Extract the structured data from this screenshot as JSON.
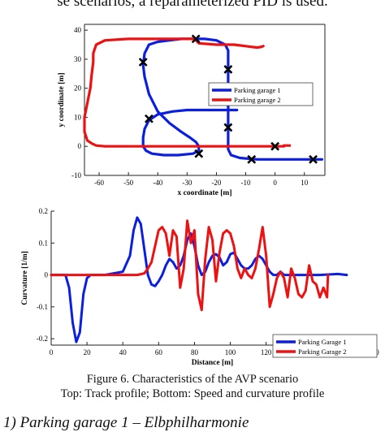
{
  "page": {
    "top_text": "se scenarios, a reparameterized PID is used.",
    "caption_line1": "Figure 6.    Characteristics of the AVP scenario",
    "caption_line2": "Top: Track profile; Bottom: Speed and curvature profile",
    "bottom_text": "1)   Parking garage 1 – Elbphilharmonie"
  },
  "colors": {
    "blue": "#0b1fe0",
    "red": "#ee1111"
  },
  "chart_data": [
    {
      "type": "line",
      "xlabel": "x coordinate [m]",
      "ylabel": "y coordinate [m]",
      "xlim": [
        -65,
        17
      ],
      "ylim": [
        -10,
        42
      ],
      "xticks": [
        -60,
        -50,
        -40,
        -30,
        -20,
        -10,
        0,
        10
      ],
      "yticks": [
        -10,
        0,
        10,
        20,
        30,
        40
      ],
      "legend": "right",
      "series": [
        {
          "name": "Parking garage 1",
          "color": "#0b1fe0",
          "x": [
            16,
            10,
            2,
            -6,
            -12,
            -15,
            -16,
            -16,
            -16,
            -16,
            -16,
            -16,
            -16,
            -16,
            -16,
            -16,
            -16,
            -17,
            -20,
            -24,
            -28,
            -32,
            -36,
            -40,
            -43,
            -44.5,
            -45,
            -44.5,
            -43,
            -40,
            -36,
            -32,
            -29,
            -27,
            -26,
            -26,
            -28,
            -33,
            -38,
            -42,
            -44,
            -45,
            -45,
            -44.5,
            -43,
            -40,
            -35,
            -30,
            -26,
            -24,
            -23,
            -22.5,
            -20,
            -17,
            -15.5,
            -14,
            -14,
            -13
          ],
          "y": [
            -4.5,
            -4.5,
            -4.5,
            -4.5,
            -4,
            -3,
            -1,
            1,
            4,
            7,
            10,
            14,
            18,
            22,
            26,
            30,
            33,
            35,
            36.5,
            37,
            37,
            37,
            36.5,
            36,
            35,
            32,
            28,
            24,
            18,
            12,
            8,
            5,
            3,
            1.5,
            0,
            -1.5,
            -2.5,
            -3,
            -3,
            -2.5,
            -1.5,
            0,
            3,
            6,
            9,
            11,
            12,
            12.5,
            12.5,
            12.5,
            12.5,
            12.5,
            12.5,
            12.5,
            12.5,
            12.5,
            12.5,
            12.5
          ]
        },
        {
          "name": "Parking garage 2",
          "color": "#ee1111",
          "x": [
            -14,
            -20,
            -26,
            -27.5,
            -31,
            -39,
            -50,
            -58,
            -61,
            -62,
            -62,
            -62.5,
            -63,
            -64,
            -65,
            -65,
            -64,
            -62.5,
            -61,
            -58,
            -55,
            -48,
            -40,
            -30,
            -20,
            -10,
            0,
            3,
            3,
            5
          ],
          "y": [
            35,
            35,
            35.5,
            37,
            37,
            37,
            37,
            36.5,
            35,
            32,
            29,
            25,
            20,
            15,
            10,
            5,
            2,
            1,
            0.3,
            0,
            0,
            0,
            0,
            0,
            0,
            0,
            0,
            0,
            0.3,
            0.3
          ],
          "extra_x": [
            -14,
            -10,
            -6,
            -4.5,
            -4
          ],
          "extra_y": [
            35,
            34.5,
            34,
            34.3,
            34.5
          ]
        }
      ],
      "markers": [
        {
          "x": -27,
          "y": 37
        },
        {
          "x": -45,
          "y": 29
        },
        {
          "x": -16,
          "y": 26.5
        },
        {
          "x": -43,
          "y": 9.5
        },
        {
          "x": -16,
          "y": 6.5
        },
        {
          "x": 0,
          "y": 0
        },
        {
          "x": -26,
          "y": -2.5
        },
        {
          "x": -8,
          "y": -4.5
        },
        {
          "x": 13,
          "y": -4.5
        }
      ]
    },
    {
      "type": "line",
      "xlabel": "Distance [m]",
      "ylabel": "Curvature [1/m]",
      "xlim": [
        0,
        180
      ],
      "ylim": [
        -0.22,
        0.2
      ],
      "xticks": [
        0,
        20,
        40,
        60,
        80,
        100,
        120,
        140,
        160,
        180
      ],
      "yticks": [
        -0.2,
        -0.1,
        0,
        0.1,
        0.2
      ],
      "legend": "bottom-right",
      "series": [
        {
          "name": "Parking Garage 1",
          "color": "#0b1fe0",
          "x": [
            0,
            8,
            10,
            12,
            14,
            16,
            18,
            20,
            22,
            30,
            40,
            44,
            46,
            48,
            50,
            52,
            54,
            56,
            58,
            60,
            62,
            64,
            66,
            68,
            70,
            72,
            74,
            76,
            78,
            80,
            82,
            84,
            86,
            88,
            90,
            92,
            94,
            96,
            98,
            100,
            102,
            104,
            106,
            108,
            110,
            112,
            114,
            116,
            118,
            120,
            122,
            124,
            126,
            128,
            130,
            140,
            150,
            160,
            165
          ],
          "y": [
            0,
            0,
            -0.04,
            -0.15,
            -0.21,
            -0.18,
            -0.06,
            -0.01,
            0,
            0,
            0.01,
            0.06,
            0.14,
            0.18,
            0.16,
            0.08,
            0.0,
            -0.03,
            -0.035,
            -0.02,
            0.0,
            0.03,
            0.05,
            0.04,
            0.02,
            0.03,
            0.06,
            0.11,
            0.13,
            0.09,
            0.03,
            0.0,
            0.01,
            0.04,
            0.06,
            0.065,
            0.055,
            0.03,
            0.04,
            0.065,
            0.07,
            0.05,
            0.03,
            0.02,
            0.02,
            0.03,
            0.05,
            0.06,
            0.05,
            0.03,
            0.01,
            0.0,
            0.0,
            0.01,
            0.0,
            0.0,
            0.0,
            0.003,
            0.0
          ]
        },
        {
          "name": "Parking Garage 2",
          "color": "#ee1111",
          "x": [
            0,
            40,
            48,
            52,
            54,
            56,
            58,
            60,
            62,
            64,
            66,
            68,
            70,
            72,
            74,
            76,
            78,
            80,
            82,
            84,
            86,
            88,
            90,
            92,
            94,
            96,
            98,
            100,
            102,
            104,
            106,
            108,
            110,
            112,
            114,
            116,
            118,
            120,
            122,
            124,
            126,
            128,
            130,
            132,
            134,
            136,
            138,
            140,
            142,
            144,
            146,
            148,
            150,
            152,
            154,
            154.5
          ],
          "y": [
            0,
            0,
            0,
            0.005,
            0.02,
            0.04,
            0.09,
            0.14,
            0.15,
            0.13,
            0.06,
            0.14,
            0.12,
            -0.04,
            0.02,
            0.17,
            0.1,
            0.14,
            -0.06,
            -0.11,
            0.05,
            0.15,
            0.11,
            -0.02,
            0.07,
            0.13,
            0.14,
            0.13,
            0.09,
            0.02,
            -0.01,
            0.02,
            0.0,
            -0.01,
            0.02,
            0.08,
            0.15,
            0.06,
            -0.1,
            -0.06,
            -0.01,
            0.01,
            -0.01,
            -0.07,
            0.02,
            -0.01,
            -0.06,
            -0.07,
            -0.05,
            0.03,
            -0.02,
            -0.03,
            -0.07,
            -0.04,
            -0.07,
            0.0
          ]
        }
      ]
    }
  ]
}
